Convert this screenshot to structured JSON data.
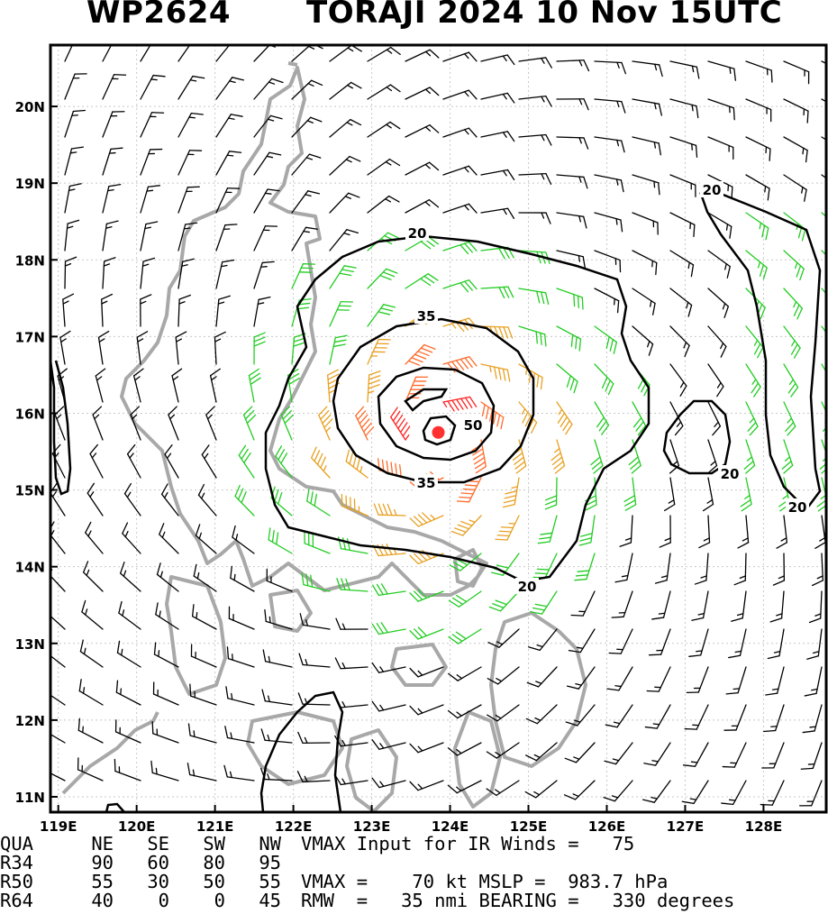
{
  "header": {
    "storm_id": "WP2624",
    "title": "TORAJI 2024 10 Nov 15UTC"
  },
  "map": {
    "lon_labels": [
      "119E",
      "120E",
      "121E",
      "122E",
      "123E",
      "124E",
      "125E",
      "126E",
      "127E",
      "128E"
    ],
    "lat_labels": [
      "20N",
      "19N",
      "18N",
      "17N",
      "16N",
      "15N",
      "14N",
      "13N",
      "12N",
      "11N"
    ],
    "lon_range": [
      118.9,
      128.8
    ],
    "lat_range": [
      10.8,
      20.8
    ],
    "contour_labels": [
      "20",
      "35",
      "50",
      "20",
      "20",
      "20"
    ],
    "storm_center": {
      "lat": 15.75,
      "lon": 123.85
    },
    "colors": {
      "land_outline": "#a8a8a8",
      "barb_weak": "#000000",
      "barb_34kt": "#22cc22",
      "barb_50kt": "#e8a020",
      "barb_64kt": "#ff6a2a",
      "barb_core": "#ff2222",
      "contour": "#000000",
      "center_marker": "#ff3030"
    }
  },
  "info": {
    "header_row": [
      "QUA",
      "NE",
      "SE",
      "SW",
      "NW"
    ],
    "rows": [
      {
        "label": "R34",
        "values": [
          "90",
          "60",
          "80",
          "95"
        ]
      },
      {
        "label": "R50",
        "values": [
          "55",
          "30",
          "50",
          "55"
        ]
      },
      {
        "label": "R64",
        "values": [
          "40",
          "0",
          "0",
          "45"
        ]
      }
    ],
    "vmax_input": "VMAX Input for IR Winds =   75",
    "vmax_line": "VMAX =    70 kt MSLP =  983.7 hPa",
    "rmw_line": "RMW  =   35 nmi BEARING =   330 degrees"
  }
}
